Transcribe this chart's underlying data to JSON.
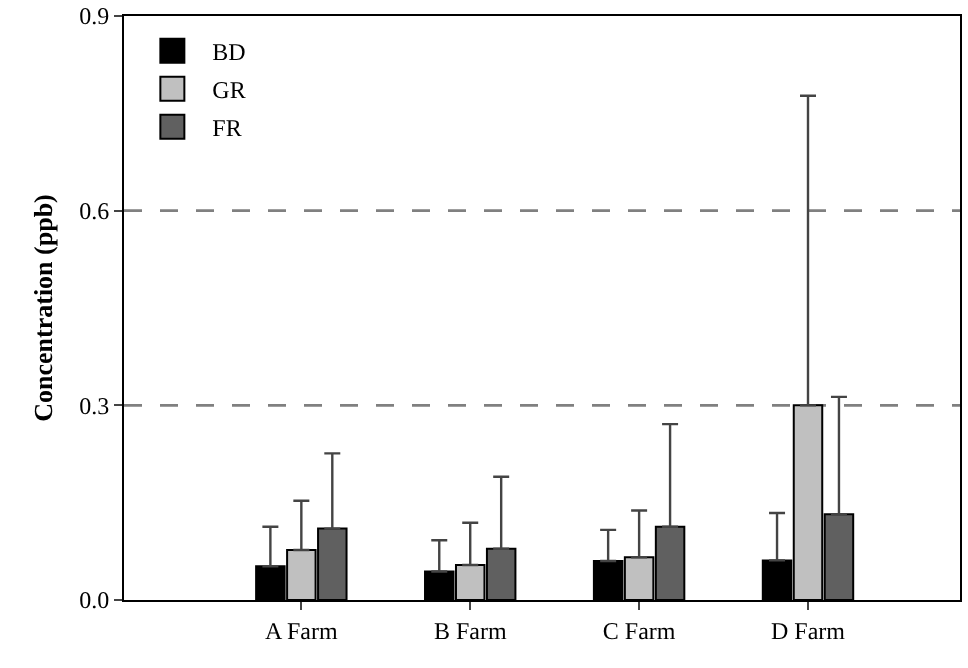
{
  "chart_data": {
    "type": "bar",
    "ylabel": "Concentration (ppb)",
    "categories": [
      "A Farm",
      "B Farm",
      "C Farm",
      "D Farm"
    ],
    "series": [
      {
        "name": "BD",
        "color": "#000000",
        "values": [
          0.052,
          0.044,
          0.06,
          0.061
        ],
        "errors": [
          [
            0.052,
            0.113
          ],
          [
            0.044,
            0.092
          ],
          [
            0.06,
            0.108
          ],
          [
            0.061,
            0.134
          ]
        ]
      },
      {
        "name": "GR",
        "color": "#c0c0c0",
        "values": [
          0.077,
          0.054,
          0.066,
          0.3
        ],
        "errors": [
          [
            0.077,
            0.153
          ],
          [
            0.054,
            0.119
          ],
          [
            0.066,
            0.138
          ],
          [
            0.3,
            0.777
          ]
        ]
      },
      {
        "name": "FR",
        "color": "#606060",
        "values": [
          0.11,
          0.079,
          0.113,
          0.132
        ],
        "errors": [
          [
            0.11,
            0.226
          ],
          [
            0.079,
            0.19
          ],
          [
            0.113,
            0.271
          ],
          [
            0.132,
            0.313
          ]
        ]
      }
    ],
    "ylim": [
      0,
      0.9
    ],
    "yticks": [
      {
        "value": 0,
        "label": "0.0"
      },
      {
        "value": 0.3,
        "label": "0.3"
      },
      {
        "value": 0.6,
        "label": "0.6"
      },
      {
        "value": 0.9,
        "label": "0.9"
      }
    ],
    "ref_lines": [
      {
        "axis": "y",
        "value": 0.3,
        "color": "#808080",
        "line_style": "dashed"
      },
      {
        "axis": "y",
        "value": 0.6,
        "color": "#808080",
        "line_style": "dashed"
      }
    ],
    "legend": "top left",
    "grid": false
  }
}
